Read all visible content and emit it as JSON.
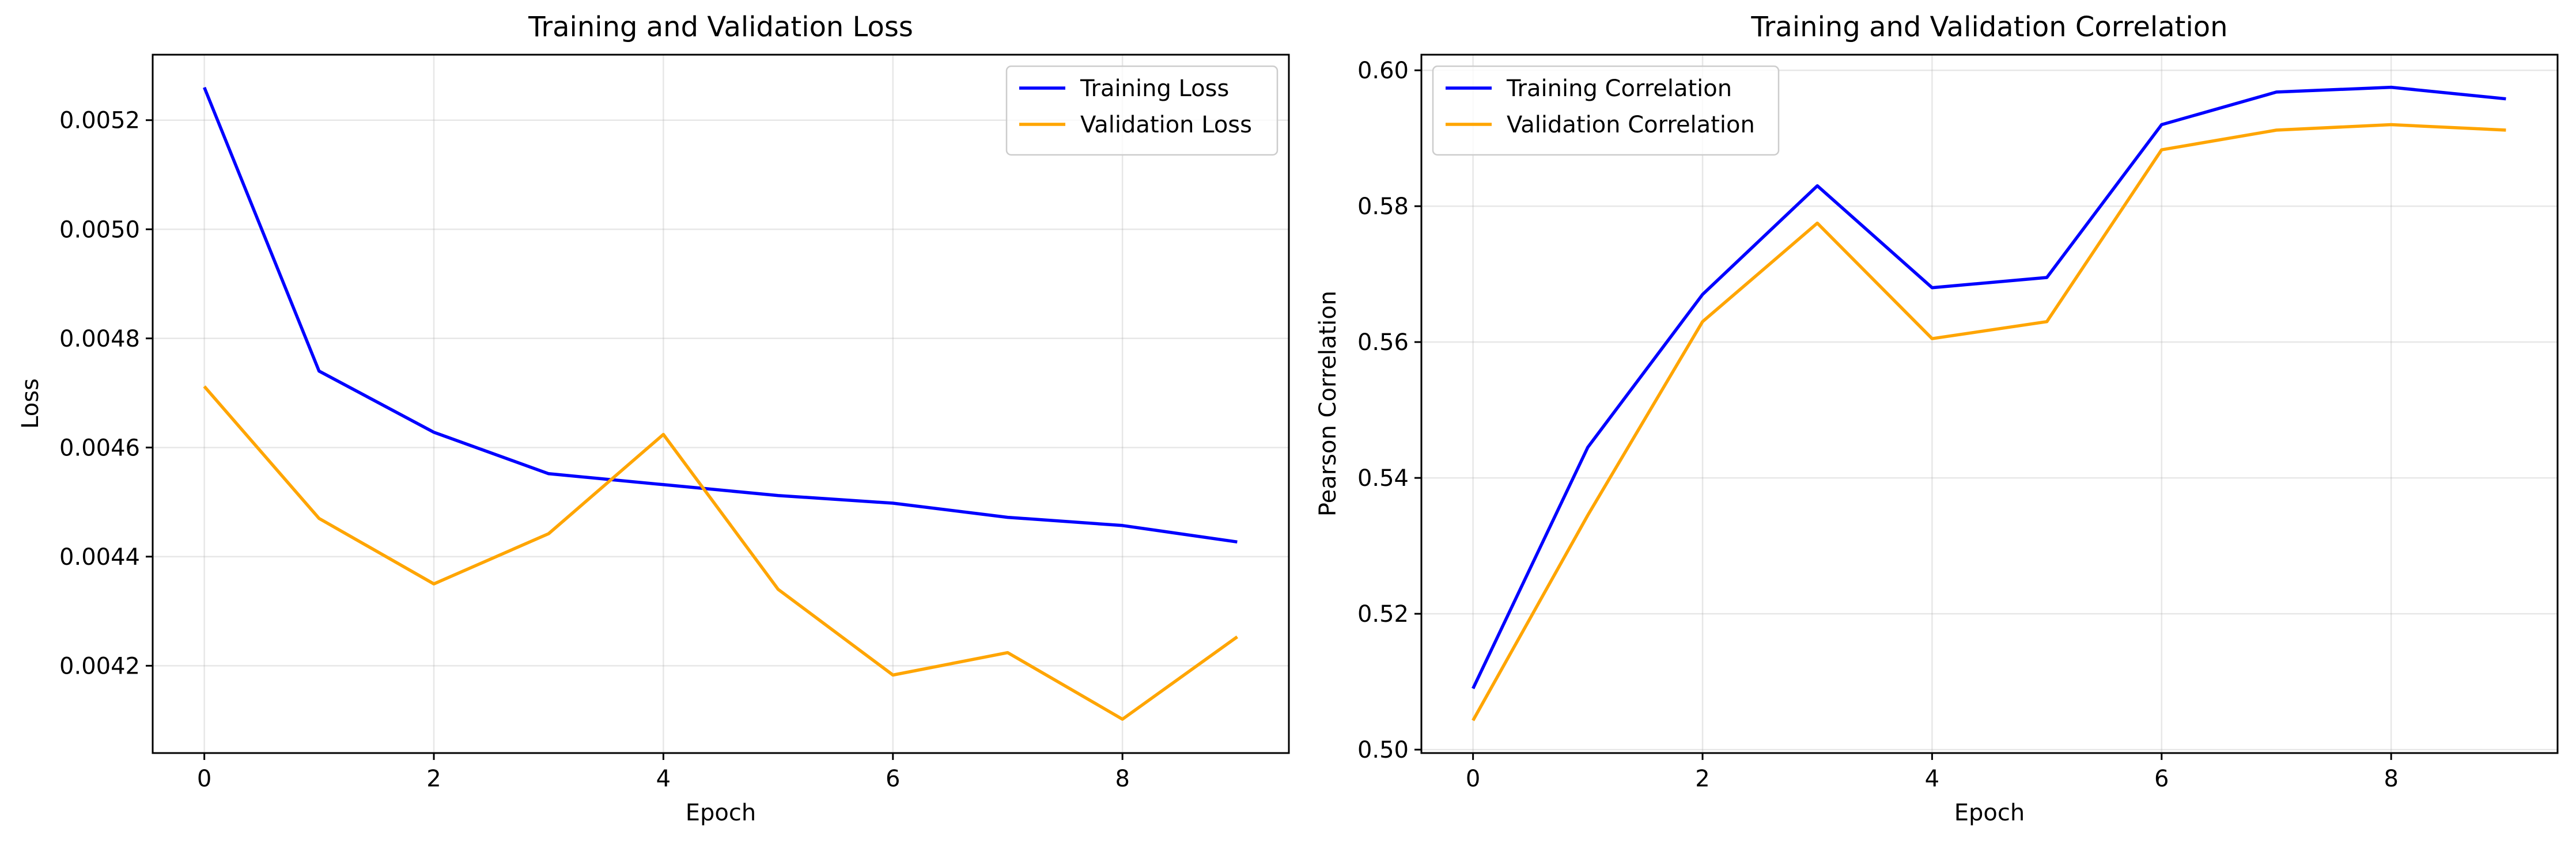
{
  "chart_data": [
    {
      "type": "line",
      "title": "Training and Validation Loss",
      "xlabel": "Epoch",
      "ylabel": "Loss",
      "x": [
        0,
        1,
        2,
        3,
        4,
        5,
        6,
        7,
        8,
        9
      ],
      "xlim": [
        -0.45,
        9.45
      ],
      "ylim": [
        0.00404,
        0.00532
      ],
      "xticks": [
        0,
        2,
        4,
        6,
        8
      ],
      "xtick_labels": [
        "0",
        "2",
        "4",
        "6",
        "8"
      ],
      "yticks": [
        0.0042,
        0.0044,
        0.0046,
        0.0048,
        0.005,
        0.0052
      ],
      "ytick_labels": [
        "0.0042",
        "0.0044",
        "0.0046",
        "0.0048",
        "0.0050",
        "0.0052"
      ],
      "grid": true,
      "legend_position": "top-right",
      "series": [
        {
          "name": "Training Loss",
          "color": "#0000ff",
          "values": [
            0.00526,
            0.00474,
            0.004628,
            0.004552,
            0.004532,
            0.004512,
            0.004498,
            0.004472,
            0.004457,
            0.004427
          ]
        },
        {
          "name": "Validation Loss",
          "color": "#ffa500",
          "values": [
            0.004712,
            0.00447,
            0.00435,
            0.004442,
            0.004624,
            0.00434,
            0.004183,
            0.004224,
            0.004102,
            0.004253
          ]
        }
      ]
    },
    {
      "type": "line",
      "title": "Training and Validation Correlation",
      "xlabel": "Epoch",
      "ylabel": "Pearson Correlation",
      "x": [
        0,
        1,
        2,
        3,
        4,
        5,
        6,
        7,
        8,
        9
      ],
      "xlim": [
        -0.45,
        9.45
      ],
      "ylim": [
        0.4995,
        0.6023
      ],
      "xticks": [
        0,
        2,
        4,
        6,
        8
      ],
      "xtick_labels": [
        "0",
        "2",
        "4",
        "6",
        "8"
      ],
      "yticks": [
        0.5,
        0.52,
        0.54,
        0.56,
        0.58,
        0.6
      ],
      "ytick_labels": [
        "0.50",
        "0.52",
        "0.54",
        "0.56",
        "0.58",
        "0.60"
      ],
      "grid": true,
      "legend_position": "top-left",
      "series": [
        {
          "name": "Training Correlation",
          "color": "#0000ff",
          "values": [
            0.509,
            0.5445,
            0.567,
            0.583,
            0.568,
            0.5695,
            0.592,
            0.5968,
            0.5975,
            0.5958
          ]
        },
        {
          "name": "Validation Correlation",
          "color": "#ffa500",
          "values": [
            0.5043,
            0.5345,
            0.563,
            0.5775,
            0.5605,
            0.563,
            0.5883,
            0.5912,
            0.592,
            0.5912
          ]
        }
      ]
    }
  ]
}
